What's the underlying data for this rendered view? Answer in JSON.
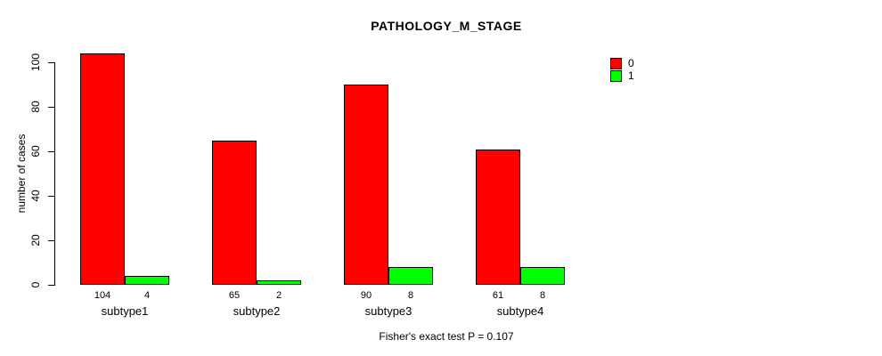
{
  "chart_data": {
    "type": "bar",
    "title": "PATHOLOGY_M_STAGE",
    "categories": [
      "subtype1",
      "subtype2",
      "subtype3",
      "subtype4"
    ],
    "series": [
      {
        "name": "0",
        "color": "#FF0000",
        "values": [
          104,
          65,
          90,
          61
        ]
      },
      {
        "name": "1",
        "color": "#00FF00",
        "values": [
          4,
          2,
          8,
          8
        ]
      }
    ],
    "bar_value_labels": [
      [
        "104",
        "4"
      ],
      [
        "65",
        "2"
      ],
      [
        "90",
        "8"
      ],
      [
        "61",
        "8"
      ]
    ],
    "xlabel": "",
    "ylabel": "number of cases",
    "ylim": [
      0,
      100
    ],
    "yticks": [
      0,
      20,
      40,
      60,
      80,
      100
    ],
    "grid": false,
    "legend_position": "top-right",
    "annotation": "Fisher's exact test P = 0.107"
  }
}
